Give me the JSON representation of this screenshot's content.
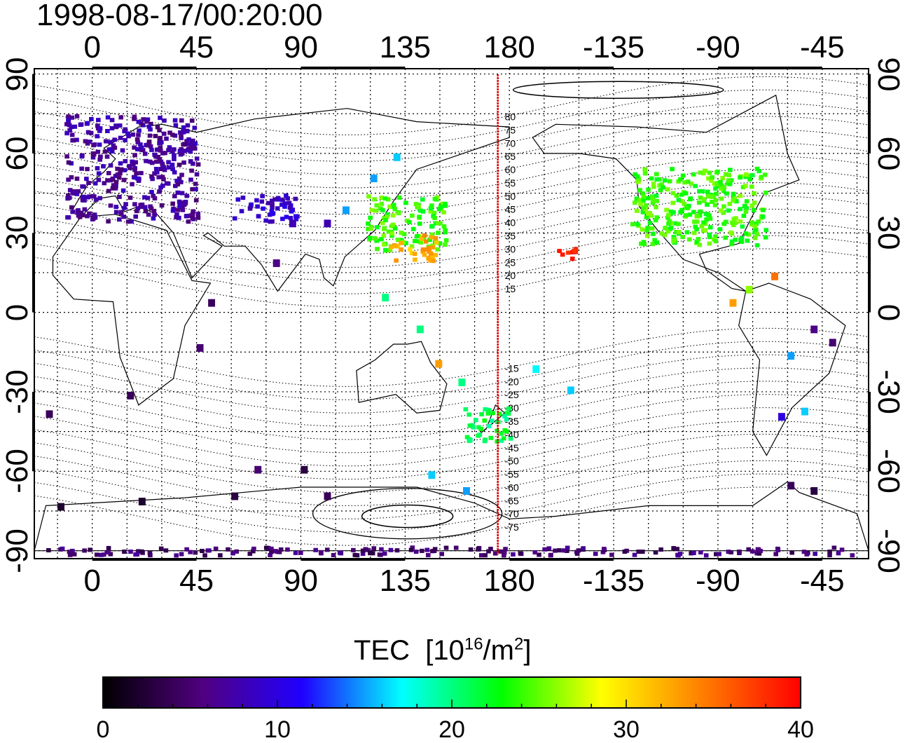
{
  "timestamp": "1998-08-17/00:20:00",
  "map": {
    "projection": "equirectangular, centered at 180",
    "lon_ticks_top": [
      "0",
      "45",
      "90",
      "135",
      "180",
      "-135",
      "-90",
      "-45"
    ],
    "lon_ticks_bottom": [
      "0",
      "45",
      "90",
      "135",
      "180",
      "-135",
      "-90",
      "-45"
    ],
    "lat_ticks_left": [
      "90",
      "60",
      "30",
      "0",
      "-30",
      "-60",
      "-90"
    ],
    "lat_ticks_right": [
      "90",
      "60",
      "30",
      "0",
      "-30",
      "-60",
      "-90"
    ],
    "grid": "dotted, 15 degree spacing",
    "meridian_marker": {
      "lon": 175,
      "color": "#dd0000"
    },
    "magnetic_latitude_labels": [
      "80",
      "75",
      "70",
      "65",
      "60",
      "55",
      "50",
      "45",
      "40",
      "35",
      "30",
      "25",
      "20",
      "15",
      "-15",
      "-20",
      "-25",
      "-30",
      "-35",
      "-40",
      "-45",
      "-50",
      "-55",
      "-60",
      "-65",
      "-70",
      "-75"
    ]
  },
  "colorbar": {
    "title": "TEC",
    "unit_text": "[10",
    "unit_exp": "16",
    "unit_mid": "/m",
    "unit_exp2": "2",
    "unit_end": "]",
    "ticks": [
      "0",
      "10",
      "20",
      "30",
      "40"
    ],
    "range": [
      0,
      40
    ],
    "colors": [
      "#000000",
      "#500080",
      "#2000ff",
      "#00ffff",
      "#00ff00",
      "#ffff00",
      "#ff8000",
      "#ff0000"
    ]
  },
  "chart_data": {
    "type": "heatmap",
    "title": "1998-08-17/00:20:00",
    "xlabel": "",
    "ylabel": "",
    "xlim_lon": [
      -25,
      335
    ],
    "ylim_lat": [
      -93,
      92
    ],
    "colorbar_label": "TEC [10^16/m^2]",
    "value_range": [
      0,
      40
    ],
    "regions": [
      {
        "lon": [
          -12,
          45
        ],
        "lat": [
          35,
          75
        ],
        "tec": 7
      },
      {
        "lon": [
          60,
          88
        ],
        "lat": [
          35,
          45
        ],
        "tec": 9
      },
      {
        "lon": [
          118,
          152
        ],
        "lat": [
          24,
          45
        ],
        "tec": 24
      },
      {
        "lon": [
          128,
          148
        ],
        "lat": [
          20,
          30
        ],
        "tec": 32
      },
      {
        "lon": [
          232,
          290
        ],
        "lat": [
          26,
          55
        ],
        "tec": 24
      },
      {
        "lon": [
          200,
          210
        ],
        "lat": [
          20,
          25
        ],
        "tec": 39
      },
      {
        "lon": [
          160,
          180
        ],
        "lat": [
          -48,
          -35
        ],
        "tec": 21
      },
      {
        "lon": [
          -20,
          330
        ],
        "lat": [
          -91,
          -88
        ],
        "tec": 5
      }
    ]
  }
}
